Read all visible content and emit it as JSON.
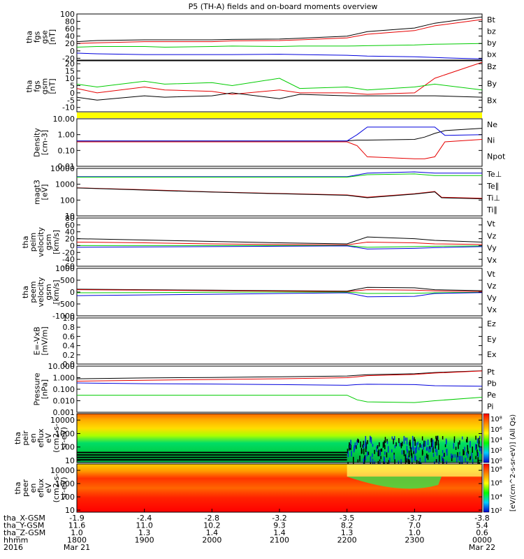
{
  "title": "P5 (TH-A) fields and on-board moments overview",
  "colors": {
    "black": "#000000",
    "red": "#e60000",
    "green": "#00cc00",
    "blue": "#0000dd",
    "yellow": "#ffff00"
  },
  "chart_data": [
    {
      "type": "line",
      "panel": "fgs_gse",
      "ylabel": [
        "tha",
        "fgs",
        "gse",
        "[nT]"
      ],
      "ticks": [
        "100",
        "80",
        "60",
        "40",
        "20",
        "0",
        "-20"
      ],
      "ylim": [
        -25,
        100
      ],
      "legend": [
        "Bt",
        "bz",
        "by",
        "bx"
      ],
      "x": [
        1800,
        1830,
        1900,
        1930,
        2000,
        2030,
        2100,
        2130,
        2200,
        2230,
        2300,
        2330,
        2400
      ],
      "series": [
        {
          "name": "Bt",
          "values": [
            25,
            28,
            30,
            30,
            30,
            31,
            32,
            34,
            40,
            52,
            62,
            75,
            92
          ]
        },
        {
          "name": "bz",
          "values": [
            20,
            22,
            25,
            25,
            25,
            27,
            28,
            30,
            35,
            45,
            55,
            68,
            85
          ]
        },
        {
          "name": "by",
          "values": [
            10,
            12,
            12,
            10,
            12,
            13,
            12,
            13,
            13,
            14,
            16,
            18,
            20
          ]
        },
        {
          "name": "bx",
          "values": [
            -6,
            -8,
            -10,
            -10,
            -10,
            -10,
            -9,
            -10,
            -12,
            -14,
            -16,
            -18,
            -22
          ]
        }
      ]
    },
    {
      "type": "line",
      "panel": "fgs_gsm",
      "ylabel": [
        "tha",
        "fgs",
        "gsm",
        "[nT]"
      ],
      "ticks": [
        "20",
        "15",
        "10",
        "5",
        "0",
        "-5",
        "-10"
      ],
      "ylim": [
        -13,
        22
      ],
      "legend": [
        "Bz",
        "By",
        "Bx"
      ],
      "x": [
        1800,
        1830,
        1900,
        1930,
        2000,
        2030,
        2100,
        2130,
        2200,
        2230,
        2300,
        2330,
        2400
      ],
      "series": [
        {
          "name": "Bz",
          "values": [
            3,
            0,
            4,
            2,
            1,
            -1,
            2,
            0,
            0,
            -1,
            0,
            10,
            21
          ]
        },
        {
          "name": "By",
          "values": [
            6,
            4,
            8,
            6,
            7,
            5,
            10,
            3,
            4,
            2,
            4,
            6,
            2
          ]
        },
        {
          "name": "Bx",
          "values": [
            -3,
            -5,
            -2,
            -3,
            -2,
            0,
            -4,
            -1,
            -2,
            -2,
            -2,
            -2,
            -3
          ]
        }
      ]
    },
    {
      "type": "line",
      "panel": "density",
      "log": true,
      "ylabel": [
        "Density",
        "[cm-3]"
      ],
      "ticks": [
        "10.00",
        "1.00",
        "0.10",
        "0.01"
      ],
      "ylim": [
        0.01,
        10
      ],
      "legend": [
        "Ne",
        "Ni",
        "Npot"
      ],
      "x": [
        1800,
        1900,
        2000,
        2100,
        2200,
        2215,
        2230,
        2300,
        2315,
        2330,
        2345,
        2400
      ],
      "series": [
        {
          "name": "Ne",
          "values": [
            0.35,
            0.35,
            0.35,
            0.35,
            0.35,
            0.2,
            0.04,
            0.03,
            0.03,
            0.04,
            0.35,
            0.5
          ]
        },
        {
          "name": "Ni",
          "values": [
            0.4,
            0.4,
            0.4,
            0.4,
            0.4,
            0.45,
            0.45,
            0.5,
            0.7,
            1.2,
            1.8,
            2.5
          ]
        },
        {
          "name": "Npot",
          "values": [
            0.4,
            0.4,
            0.4,
            0.4,
            0.4,
            1.0,
            3.0,
            3.0,
            3.0,
            3.0,
            0.9,
            1.0
          ]
        }
      ]
    },
    {
      "type": "line",
      "panel": "temperature",
      "log": true,
      "ylabel": [
        "magt3",
        "[eV]"
      ],
      "ticks": [
        "10000",
        "1000",
        "100",
        "10"
      ],
      "ylim": [
        10,
        10000
      ],
      "legend": [
        "Te⊥",
        "Te∥",
        "Ti⊥",
        "Ti∥"
      ],
      "x": [
        1800,
        1900,
        2000,
        2100,
        2200,
        2230,
        2300,
        2330,
        2340,
        2400
      ],
      "series": [
        {
          "name": "Te⊥",
          "values": [
            600,
            450,
            330,
            260,
            210,
            150,
            250,
            350,
            150,
            130
          ]
        },
        {
          "name": "Te∥",
          "values": [
            580,
            430,
            320,
            250,
            200,
            140,
            240,
            330,
            140,
            120
          ]
        },
        {
          "name": "Ti⊥",
          "values": [
            3000,
            3000,
            3000,
            3000,
            3000,
            5000,
            6000,
            5000,
            5000,
            5000
          ]
        },
        {
          "name": "Ti∥",
          "values": [
            2800,
            2800,
            2800,
            2800,
            2800,
            4000,
            4500,
            3500,
            3500,
            3500
          ]
        }
      ]
    },
    {
      "type": "line",
      "panel": "peim_velocity",
      "ylabel": [
        "tha",
        "peim",
        "velocity",
        "gsm",
        "[km/s]"
      ],
      "ticks": [
        "80",
        "60",
        "40",
        "20",
        "0",
        "-20",
        "-40",
        "-60"
      ],
      "ylim": [
        -60,
        80
      ],
      "legend": [
        "Vt",
        "Vz",
        "Vy",
        "Vx"
      ],
      "x": [
        1800,
        1900,
        2000,
        2100,
        2200,
        2230,
        2300,
        2330,
        2400
      ],
      "series": [
        {
          "name": "Vt",
          "values": [
            20,
            16,
            12,
            8,
            5,
            25,
            20,
            15,
            10
          ]
        },
        {
          "name": "Vz",
          "values": [
            10,
            8,
            5,
            3,
            2,
            10,
            8,
            5,
            3
          ]
        },
        {
          "name": "Vy",
          "values": [
            0,
            0,
            0,
            0,
            0,
            -5,
            -3,
            -2,
            -1
          ]
        },
        {
          "name": "Vx",
          "values": [
            -5,
            -4,
            -3,
            -2,
            -1,
            -10,
            -8,
            -6,
            -3
          ]
        }
      ]
    },
    {
      "type": "line",
      "panel": "peem_velocity",
      "ylabel": [
        "tha",
        "peem",
        "velocity",
        "gsm",
        "[km/s]"
      ],
      "ticks": [
        "1000",
        "500",
        "0",
        "-500",
        "-1000"
      ],
      "ylim": [
        -1000,
        1000
      ],
      "legend": [
        "Vt",
        "Vz",
        "Vy",
        "Vx"
      ],
      "x": [
        1800,
        1900,
        2000,
        2100,
        2200,
        2230,
        2300,
        2330,
        2400
      ],
      "series": [
        {
          "name": "Vt",
          "values": [
            120,
            100,
            80,
            60,
            40,
            200,
            180,
            100,
            60
          ]
        },
        {
          "name": "Vz",
          "values": [
            100,
            80,
            60,
            40,
            20,
            100,
            80,
            50,
            20
          ]
        },
        {
          "name": "Vy",
          "values": [
            -30,
            -20,
            -10,
            0,
            0,
            -60,
            -50,
            -30,
            -10
          ]
        },
        {
          "name": "Vx",
          "values": [
            -150,
            -120,
            -90,
            -60,
            -30,
            -200,
            -180,
            -60,
            -20
          ]
        }
      ]
    },
    {
      "type": "line",
      "panel": "efield",
      "ylabel": [
        "E=-VxB",
        "[mV/m]"
      ],
      "ticks": [
        "1.0",
        "0.8",
        "0.6",
        "0.4",
        "0.2",
        "0.0"
      ],
      "ylim": [
        0,
        1
      ],
      "legend": [
        "Ez",
        "Ey",
        "Ex"
      ],
      "series": []
    },
    {
      "type": "line",
      "panel": "pressure",
      "log": true,
      "ylabel": [
        "Pressure",
        "[nPa]"
      ],
      "ticks": [
        "10.000",
        "1.000",
        "0.100",
        "0.010",
        "0.001"
      ],
      "ylim": [
        0.001,
        10
      ],
      "legend": [
        "Pt",
        "Pb",
        "Pe",
        "Pi"
      ],
      "x": [
        1800,
        1900,
        2000,
        2100,
        2200,
        2215,
        2230,
        2300,
        2330,
        2400
      ],
      "series": [
        {
          "name": "Pt",
          "values": [
            0.8,
            0.95,
            1.05,
            1.2,
            1.4,
            1.6,
            1.8,
            2.2,
            2.8,
            4.0
          ]
        },
        {
          "name": "Pb",
          "values": [
            0.5,
            0.6,
            0.7,
            0.8,
            1.0,
            1.2,
            1.5,
            1.9,
            2.5,
            3.8
          ]
        },
        {
          "name": "Pe",
          "values": [
            0.03,
            0.03,
            0.03,
            0.03,
            0.03,
            0.012,
            0.008,
            0.007,
            0.01,
            0.02
          ]
        },
        {
          "name": "Pi",
          "values": [
            0.35,
            0.3,
            0.28,
            0.25,
            0.22,
            0.25,
            0.27,
            0.25,
            0.2,
            0.18
          ]
        }
      ]
    },
    {
      "type": "heatmap",
      "panel": "peir",
      "ylabel": [
        "tha",
        "peir",
        "en",
        "eflux",
        "eV",
        "(cm2-s-",
        "sr-eV)"
      ],
      "ticks": [
        "10000",
        "1000",
        "100",
        "10"
      ],
      "ylim": [
        7,
        30000
      ]
    },
    {
      "type": "heatmap",
      "panel": "peer",
      "ylabel": [
        "tha",
        "peer",
        "en",
        "eflux",
        "eV",
        "(cm2-s-",
        "sr-eV)"
      ],
      "ticks": [
        "10000",
        "1000",
        "100",
        "10"
      ],
      "ylim": [
        7,
        30000
      ]
    }
  ],
  "colorbar": {
    "label": "[eV/(cm^2-s-sr-eV)] (All Qs)",
    "ticks_top": [
      "10⁸",
      "10⁶",
      "10⁴",
      "10²",
      "10⁰"
    ],
    "ticks_bottom": [
      "10⁸",
      "10⁶",
      "10⁴",
      "10²"
    ]
  },
  "xaxis": {
    "rows": [
      {
        "label": "tha_X-GSM",
        "values": [
          "-1.9",
          "-2.4",
          "-2.8",
          "-3.2",
          "-3.5",
          "-3.7",
          "-3.8"
        ]
      },
      {
        "label": "tha_Y-GSM",
        "values": [
          "11.6",
          "11.0",
          "10.2",
          "9.3",
          "8.2",
          "7.0",
          "5.4"
        ]
      },
      {
        "label": "tha_Z-GSM",
        "values": [
          "1.0",
          "1.3",
          "1.4",
          "1.4",
          "1.3",
          "1.0",
          "0.6"
        ]
      },
      {
        "label": "hhmm",
        "values": [
          "1800",
          "1900",
          "2000",
          "2100",
          "2200",
          "2300",
          "0000"
        ]
      }
    ],
    "year": "2016",
    "dates": [
      "Mar 21",
      "Mar 22"
    ]
  }
}
